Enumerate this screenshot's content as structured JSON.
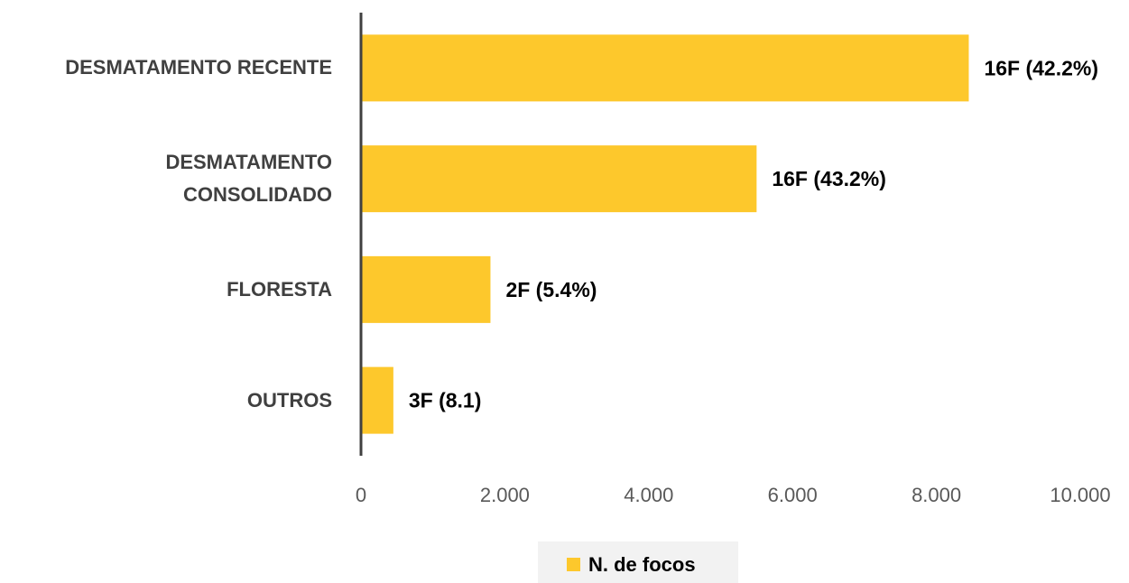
{
  "chart_data": {
    "type": "bar",
    "orientation": "horizontal",
    "categories": [
      "DESMATAMENTO RECENTE",
      "DESMATAMENTO CONSOLIDADO",
      "FLORESTA",
      "OUTROS"
    ],
    "series": [
      {
        "name": "N. de focos",
        "color": "#fdc82c",
        "values": [
          8450,
          5500,
          1800,
          450
        ]
      }
    ],
    "annotations": [
      "16F (42.2%)",
      "16F (43.2%)",
      "2F (5.4%)",
      "3F (8.1)"
    ],
    "xlim": [
      0,
      10000
    ],
    "xticks": [
      0,
      {
        "value": 2000,
        "label": "2.000"
      },
      {
        "value": 4000,
        "label": "4.000"
      },
      {
        "value": 6000,
        "label": "6.000"
      },
      {
        "value": 8000,
        "label": "8.000"
      },
      {
        "value": 10000,
        "label": "10.000"
      }
    ],
    "legend": "bottom"
  }
}
